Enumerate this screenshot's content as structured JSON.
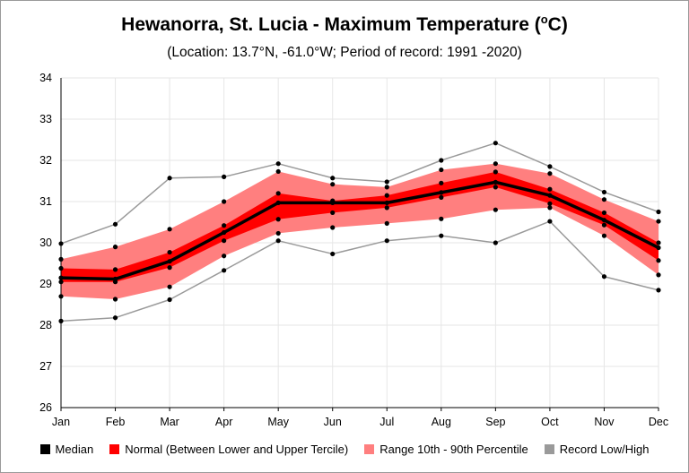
{
  "chart_data": {
    "type": "line",
    "title": "Hewanorra, St. Lucia - Maximum Temperature (",
    "title_sup": "o",
    "title_unit": "C)",
    "subtitle": "(Location: 13.7°N, -61.0°W; Period of record: 1991 -2020)",
    "categories": [
      "Jan",
      "Feb",
      "Mar",
      "Apr",
      "May",
      "Jun",
      "Jul",
      "Aug",
      "Sep",
      "Oct",
      "Nov",
      "Dec"
    ],
    "ylim": [
      26,
      34
    ],
    "yticks": [
      "26",
      "27",
      "28",
      "29",
      "30",
      "31",
      "32",
      "33",
      "34"
    ],
    "grid": true,
    "legend_position": "bottom",
    "median": [
      29.15,
      29.12,
      29.55,
      30.25,
      30.97,
      30.97,
      30.97,
      31.22,
      31.47,
      31.15,
      30.55,
      29.88
    ],
    "tercile_low": [
      29.05,
      29.05,
      29.4,
      30.05,
      30.57,
      30.73,
      30.85,
      31.1,
      31.35,
      30.95,
      30.43,
      29.57
    ],
    "tercile_high": [
      29.38,
      29.35,
      29.77,
      30.42,
      31.2,
      31.02,
      31.15,
      31.45,
      31.72,
      31.3,
      30.73,
      30.0
    ],
    "p10": [
      28.7,
      28.63,
      28.93,
      29.68,
      30.23,
      30.37,
      30.47,
      30.58,
      30.8,
      30.85,
      30.17,
      29.22
    ],
    "p90": [
      29.6,
      29.9,
      30.33,
      31.0,
      31.73,
      31.42,
      31.35,
      31.77,
      31.92,
      31.68,
      31.05,
      30.52
    ],
    "record_low": [
      28.1,
      28.18,
      28.62,
      29.33,
      30.05,
      29.73,
      30.05,
      30.17,
      30.0,
      30.52,
      29.18,
      28.85
    ],
    "record_high": [
      29.98,
      30.45,
      31.57,
      31.6,
      31.92,
      31.57,
      31.48,
      32.0,
      32.42,
      31.85,
      31.23,
      30.75
    ],
    "legend": [
      {
        "label": "Median",
        "color": "#000000"
      },
      {
        "label": "Normal (Between Lower and Upper Tercile)",
        "color": "#ff0000"
      },
      {
        "label": "Range 10th - 90th Percentile",
        "color": "#ff7f7f"
      },
      {
        "label": "Record Low/High",
        "color": "#9a9a9a"
      }
    ]
  }
}
